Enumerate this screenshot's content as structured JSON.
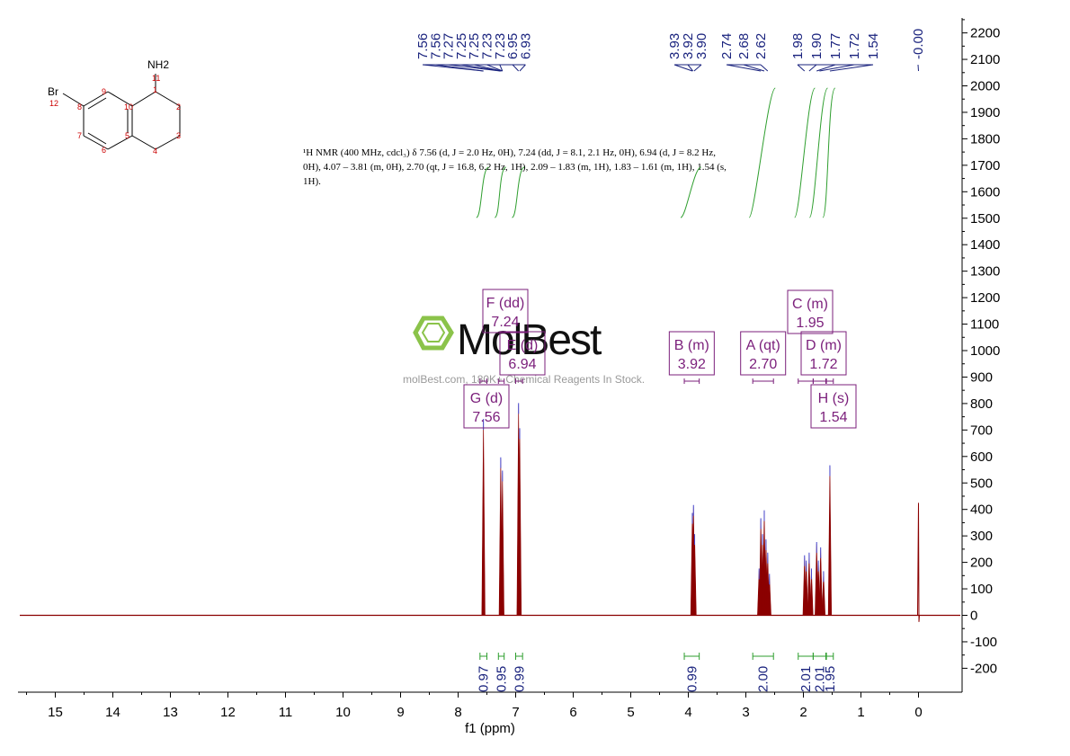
{
  "chart_data": {
    "type": "line",
    "xlabel": "f1 (ppm)",
    "x_reversed": true,
    "xlim": [
      15.6,
      -0.6
    ],
    "ylim": [
      -290,
      2250
    ],
    "x_ticks": [
      "15",
      "14",
      "13",
      "12",
      "11",
      "10",
      "9",
      "8",
      "7",
      "6",
      "5",
      "4",
      "3",
      "2",
      "1",
      "0"
    ],
    "y_ticks": [
      "2200",
      "2100",
      "2000",
      "1900",
      "1800",
      "1700",
      "1600",
      "1500",
      "1400",
      "1300",
      "1200",
      "1100",
      "1000",
      "900",
      "800",
      "700",
      "600",
      "500",
      "400",
      "300",
      "200",
      "100",
      "0",
      "-100",
      "-200"
    ],
    "peaks": [
      {
        "ppm": 7.56,
        "height": 735
      },
      {
        "ppm": 7.26,
        "height": 590
      },
      {
        "ppm": 7.23,
        "height": 540
      },
      {
        "ppm": 6.95,
        "height": 795
      },
      {
        "ppm": 6.93,
        "height": 700
      },
      {
        "ppm": 3.93,
        "height": 380
      },
      {
        "ppm": 3.91,
        "height": 410
      },
      {
        "ppm": 3.89,
        "height": 300
      },
      {
        "ppm": 2.77,
        "height": 170
      },
      {
        "ppm": 2.74,
        "height": 360
      },
      {
        "ppm": 2.71,
        "height": 300
      },
      {
        "ppm": 2.68,
        "height": 390
      },
      {
        "ppm": 2.65,
        "height": 280
      },
      {
        "ppm": 2.62,
        "height": 230
      },
      {
        "ppm": 2.59,
        "height": 150
      },
      {
        "ppm": 1.98,
        "height": 220
      },
      {
        "ppm": 1.95,
        "height": 200
      },
      {
        "ppm": 1.9,
        "height": 230
      },
      {
        "ppm": 1.86,
        "height": 170
      },
      {
        "ppm": 1.77,
        "height": 270
      },
      {
        "ppm": 1.74,
        "height": 200
      },
      {
        "ppm": 1.7,
        "height": 250
      },
      {
        "ppm": 1.65,
        "height": 160
      },
      {
        "ppm": 1.54,
        "height": 560
      }
    ],
    "tms": {
      "ppm": 0.0,
      "height": 425,
      "dip": -25
    },
    "peak_labels": [
      "7.56",
      "7.56",
      "7.27",
      "7.25",
      "7.25",
      "7.23",
      "7.23",
      "6.95",
      "6.93",
      "3.93",
      "3.92",
      "3.90",
      "2.74",
      "2.68",
      "2.62",
      "1.98",
      "1.90",
      "1.77",
      "1.72",
      "1.54",
      "-0.00"
    ],
    "peak_label_ppm": [
      7.56,
      7.56,
      7.27,
      7.25,
      7.25,
      7.23,
      7.23,
      6.95,
      6.93,
      3.93,
      3.92,
      3.9,
      2.74,
      2.68,
      2.62,
      1.98,
      1.9,
      1.77,
      1.72,
      1.54,
      0.0
    ],
    "integrals": [
      {
        "label": "0.97",
        "from": 7.62,
        "to": 7.5
      },
      {
        "label": "0.95",
        "from": 7.3,
        "to": 7.2
      },
      {
        "label": "0.99",
        "from": 7.0,
        "to": 6.88
      },
      {
        "label": "0.99",
        "from": 4.07,
        "to": 3.81
      },
      {
        "label": "2.00",
        "from": 2.88,
        "to": 2.52
      },
      {
        "label": "2.01",
        "from": 2.09,
        "to": 1.83
      },
      {
        "label": "2.01",
        "from": 1.83,
        "to": 1.61
      },
      {
        "label": "1.95",
        "from": 1.6,
        "to": 1.48
      }
    ],
    "multiplets": [
      {
        "name": "A (qt)",
        "shift": "2.70",
        "from": 2.88,
        "to": 2.52
      },
      {
        "name": "B (m)",
        "shift": "3.92",
        "from": 4.07,
        "to": 3.81
      },
      {
        "name": "C (m)",
        "shift": "1.95",
        "from": 2.09,
        "to": 1.83
      },
      {
        "name": "D (m)",
        "shift": "1.72",
        "from": 1.83,
        "to": 1.61
      },
      {
        "name": "E (d)",
        "shift": "6.94",
        "from": 7.0,
        "to": 6.88
      },
      {
        "name": "F (dd)",
        "shift": "7.24",
        "from": 7.3,
        "to": 7.2
      },
      {
        "name": "G (d)",
        "shift": "7.56",
        "from": 7.62,
        "to": 7.5
      },
      {
        "name": "H (s)",
        "shift": "1.54",
        "from": 1.6,
        "to": 1.48
      }
    ],
    "nmr_report": [
      "¹H NMR (400 MHz, cdcl₃) δ 7.56 (d, J = 2.0 Hz, 0H), 7.24 (dd, J = 8.1, 2.1 Hz, 0H), 6.94 (d, J = 8.2 Hz,",
      "0H), 4.07 – 3.81 (m, 0H), 2.70 (qt, J = 16.8, 6.2 Hz, 1H), 2.09 – 1.83 (m, 1H), 1.83 – 1.61 (m, 1H), 1.54 (s,",
      "1H)."
    ],
    "colors": {
      "spectrum": "#8b0000",
      "peak_labels": "#1a237e",
      "multiplet_boxes": "#7b1f7b",
      "integrals": "#2e9e2e",
      "axis": "#000000",
      "atom_numbers": "#cc0000",
      "logo_green": "#8bc34a"
    }
  },
  "molecule": {
    "substituents": {
      "amine": "NH2",
      "bromo": "Br"
    },
    "atom_numbers": [
      "1",
      "2",
      "3",
      "4",
      "5",
      "6",
      "7",
      "8",
      "9",
      "10",
      "11",
      "12"
    ]
  },
  "watermark": {
    "brand": "MolBest",
    "tagline": "molBest.com, 180K+ Chemical Reagents In Stock."
  }
}
